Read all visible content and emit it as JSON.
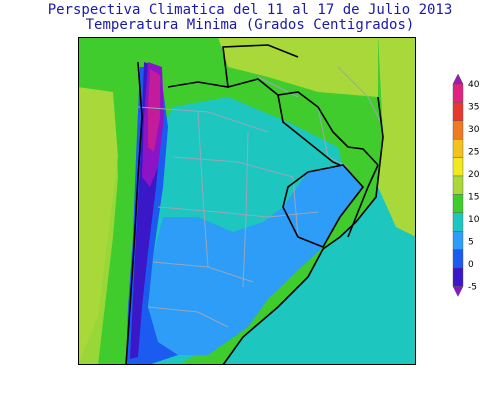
{
  "header": {
    "title": "Perspectiva Climatica del 11 al 17 de Julio 2013",
    "subtitle": "Temperatura Minima (Grados Centigrados)"
  },
  "colorbar": {
    "labels": [
      "40",
      "35",
      "30",
      "25",
      "20",
      "15",
      "10",
      "5",
      "0",
      "-5"
    ],
    "colors": [
      "#9b1bb0",
      "#e0237f",
      "#e8382e",
      "#f07a22",
      "#f2c21d",
      "#f2e81e",
      "#a8d83a",
      "#3fcc2c",
      "#1ec6c0",
      "#2d9df7",
      "#1c5bef",
      "#3a17c7",
      "#8a14c6"
    ]
  },
  "map": {
    "colors": {
      "ocean_south": "#1ec6c0",
      "ocean_north": "#a8d83a",
      "land_green": "#3fcc2c",
      "land_green_light": "#a8d83a",
      "land_teal": "#1ec6c0",
      "land_blue": "#2d9df7",
      "land_darkblue": "#1c5bef",
      "land_indigo": "#3a17c7",
      "land_purple": "#8a14c6",
      "land_magenta": "#c21c9a",
      "border_country": "#000000",
      "border_province": "#9aa6b8"
    }
  }
}
